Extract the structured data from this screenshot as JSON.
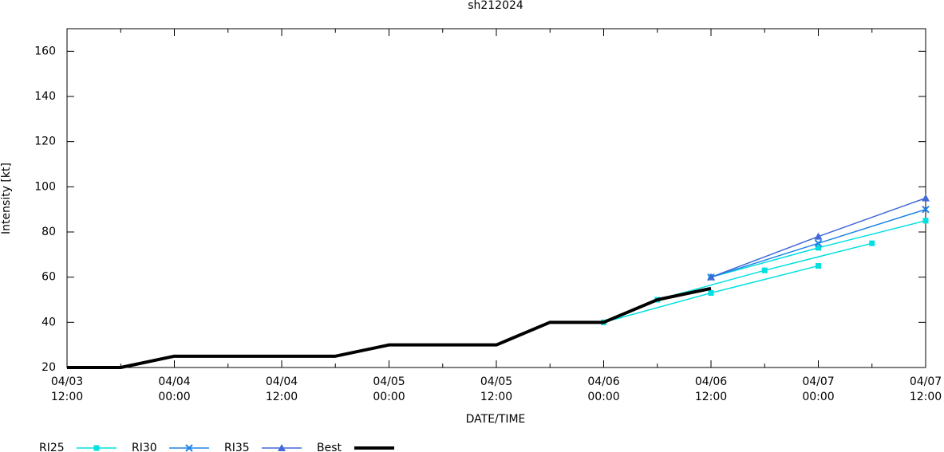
{
  "chart_data": {
    "type": "line",
    "title": "sh212024",
    "x_label": "DATE/TIME",
    "y_label": "Intensity [kt]",
    "xlim": [
      "04/03 12:00",
      "04/07 12:00"
    ],
    "xticks": [
      "04/03 12:00",
      "04/04 00:00",
      "04/04 12:00",
      "04/05 00:00",
      "04/05 12:00",
      "04/06 00:00",
      "04/06 12:00",
      "04/07 00:00",
      "04/07 12:00"
    ],
    "ylim": [
      20,
      170
    ],
    "yticks": [
      20,
      40,
      60,
      80,
      100,
      120,
      140,
      160
    ],
    "legend": "bottom left",
    "series": [
      {
        "name": "RI25",
        "color": "#00e0e0",
        "marker": "square",
        "tracks": [
          {
            "x": [
              "04/06 00:00",
              "04/06 12:00",
              "04/07 00:00"
            ],
            "values": [
              40,
              53,
              65
            ]
          },
          {
            "x": [
              "04/06 06:00",
              "04/06 18:00",
              "04/07 06:00"
            ],
            "values": [
              50,
              63,
              75
            ]
          },
          {
            "x": [
              "04/06 12:00",
              "04/07 00:00",
              "04/07 12:00"
            ],
            "values": [
              60,
              73,
              85
            ]
          }
        ]
      },
      {
        "name": "RI30",
        "color": "#1e82e6",
        "marker": "cross",
        "tracks": [
          {
            "x": [
              "04/06 12:00",
              "04/07 00:00",
              "04/07 12:00"
            ],
            "values": [
              60,
              75,
              90
            ]
          }
        ]
      },
      {
        "name": "RI35",
        "color": "#4169d8",
        "marker": "triangle",
        "tracks": [
          {
            "x": [
              "04/06 12:00",
              "04/07 00:00",
              "04/07 12:00"
            ],
            "values": [
              60,
              78,
              95
            ]
          }
        ]
      },
      {
        "name": "Best",
        "color": "#000000",
        "marker": "none",
        "width": 4,
        "tracks": [
          {
            "x": [
              "04/03 12:00",
              "04/03 18:00",
              "04/04 00:00",
              "04/04 06:00",
              "04/04 12:00",
              "04/04 18:00",
              "04/05 00:00",
              "04/05 06:00",
              "04/05 12:00",
              "04/05 18:00",
              "04/06 00:00",
              "04/06 06:00",
              "04/06 12:00"
            ],
            "values": [
              20,
              20,
              25,
              25,
              25,
              25,
              30,
              30,
              30,
              40,
              40,
              50,
              55
            ]
          }
        ]
      }
    ]
  }
}
